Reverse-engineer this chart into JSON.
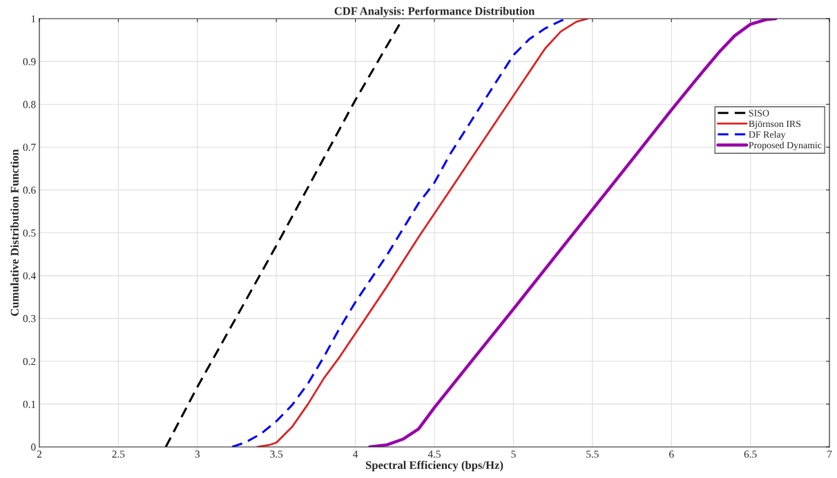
{
  "chart_data": {
    "type": "line",
    "title": "CDF Analysis: Performance Distribution",
    "xlabel": "Spectral Efficiency (bps/Hz)",
    "ylabel": "Cumulative Distribution Function",
    "xlim": [
      2,
      7
    ],
    "xticks": [
      2,
      2.5,
      3,
      3.5,
      4,
      4.5,
      5,
      5.5,
      6,
      6.5,
      7
    ],
    "ylim": [
      0,
      1
    ],
    "yticks": [
      0,
      0.1,
      0.2,
      0.3,
      0.4,
      0.5,
      0.6,
      0.7,
      0.8,
      0.9,
      1
    ],
    "grid": true,
    "legend": "right",
    "series": [
      {
        "name": "SISO",
        "color": "#000000",
        "line_style": "dashed",
        "x": [
          2.8,
          3.0,
          3.5,
          4.0,
          4.3
        ],
        "values": [
          0,
          0.14,
          0.47,
          0.81,
          1
        ]
      },
      {
        "name": "Björnson IRS",
        "color": "#e02020",
        "line_style": "solid",
        "x": [
          3.38,
          3.45,
          3.5,
          3.6,
          3.7,
          3.8,
          3.9,
          4.0,
          4.2,
          4.4,
          4.6,
          4.8,
          5.0,
          5.1,
          5.2,
          5.3,
          5.4,
          5.47
        ],
        "values": [
          0,
          0.004,
          0.01,
          0.047,
          0.1,
          0.16,
          0.21,
          0.265,
          0.375,
          0.49,
          0.6,
          0.71,
          0.82,
          0.875,
          0.93,
          0.97,
          0.993,
          1
        ]
      },
      {
        "name": "DF Relay",
        "color": "#0000ff",
        "line_style": "dashed",
        "x": [
          3.22,
          3.3,
          3.4,
          3.5,
          3.6,
          3.7,
          3.8,
          3.9,
          4.0,
          4.2,
          4.4,
          4.5,
          4.6,
          4.8,
          5.0,
          5.1,
          5.2,
          5.3,
          5.34
        ],
        "values": [
          0,
          0.01,
          0.03,
          0.06,
          0.098,
          0.148,
          0.21,
          0.277,
          0.338,
          0.448,
          0.569,
          0.617,
          0.684,
          0.8,
          0.915,
          0.952,
          0.977,
          0.995,
          1
        ]
      },
      {
        "name": "Proposed Dynamic",
        "color": "#9900aa",
        "line_style": "solid",
        "x": [
          4.09,
          4.2,
          4.3,
          4.4,
          4.5,
          4.75,
          5.0,
          5.25,
          5.5,
          5.75,
          6.0,
          6.15,
          6.3,
          6.4,
          6.5,
          6.6,
          6.66
        ],
        "values": [
          0,
          0.005,
          0.018,
          0.042,
          0.092,
          0.207,
          0.322,
          0.438,
          0.554,
          0.67,
          0.787,
          0.855,
          0.921,
          0.96,
          0.987,
          0.998,
          1
        ]
      }
    ]
  }
}
